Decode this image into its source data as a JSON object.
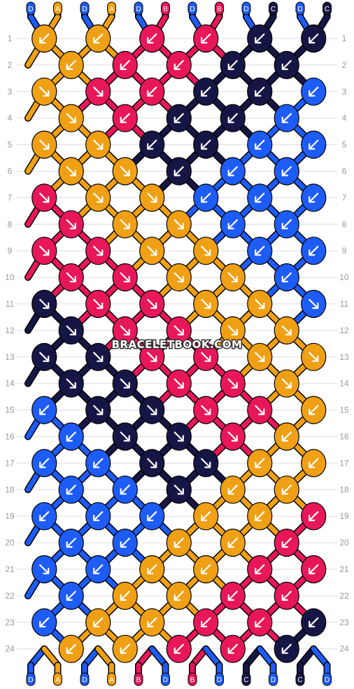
{
  "colors": {
    "A": "#f0a014",
    "B": "#e8175a",
    "C": "#161646",
    "D": "#1e5cf7"
  },
  "top_strands": [
    "D",
    "A",
    "D",
    "A",
    "D",
    "B",
    "D",
    "B",
    "D",
    "C",
    "D",
    "C"
  ],
  "bottom_strands": [
    "D",
    "A",
    "D",
    "A",
    "B",
    "D",
    "B",
    "D",
    "C",
    "D",
    "C",
    "D"
  ],
  "row_count": 24,
  "row_labels": [
    "1",
    "2",
    "3",
    "4",
    "5",
    "6",
    "7",
    "8",
    "9",
    "10",
    "11",
    "12",
    "13",
    "14",
    "15",
    "16",
    "17",
    "18",
    "19",
    "20",
    "21",
    "22",
    "23",
    "24"
  ],
  "watermark": "BRACELETBOOK.COM",
  "knot_colors": [
    [
      "A",
      "A",
      "B",
      "B",
      "C",
      "C"
    ],
    [
      "A",
      "B",
      "B",
      "C",
      "C"
    ],
    [
      "A",
      "B",
      "B",
      "C",
      "C",
      "D"
    ],
    [
      "A",
      "B",
      "C",
      "C",
      "D"
    ],
    [
      "A",
      "A",
      "C",
      "C",
      "D",
      "D"
    ],
    [
      "A",
      "A",
      "C",
      "D",
      "D"
    ],
    [
      "B",
      "A",
      "A",
      "D",
      "D",
      "D"
    ],
    [
      "B",
      "A",
      "A",
      "D",
      "D"
    ],
    [
      "B",
      "B",
      "A",
      "A",
      "D",
      "D"
    ],
    [
      "B",
      "B",
      "A",
      "A",
      "D"
    ],
    [
      "C",
      "B",
      "B",
      "A",
      "A",
      "D"
    ],
    [
      "C",
      "B",
      "B",
      "A",
      "A"
    ],
    [
      "C",
      "C",
      "B",
      "B",
      "A",
      "A"
    ],
    [
      "C",
      "C",
      "B",
      "B",
      "A"
    ],
    [
      "D",
      "C",
      "C",
      "B",
      "B",
      "A"
    ],
    [
      "D",
      "C",
      "C",
      "B",
      "A"
    ],
    [
      "D",
      "D",
      "C",
      "C",
      "A",
      "A"
    ],
    [
      "D",
      "D",
      "C",
      "A",
      "A"
    ],
    [
      "D",
      "D",
      "D",
      "A",
      "A",
      "B"
    ],
    [
      "D",
      "D",
      "A",
      "A",
      "B"
    ],
    [
      "D",
      "D",
      "A",
      "A",
      "B",
      "B"
    ],
    [
      "D",
      "A",
      "A",
      "B",
      "B"
    ],
    [
      "D",
      "A",
      "A",
      "B",
      "B",
      "C"
    ],
    [
      "A",
      "A",
      "B",
      "B",
      "C"
    ]
  ],
  "knot_arrows": [
    [
      "sw",
      "sw",
      "sw",
      "sw",
      "sw",
      "sw"
    ],
    [
      "sw",
      "sw",
      "sw",
      "sw",
      "sw"
    ],
    [
      "se",
      "se",
      "sw",
      "sw",
      "sw",
      "sw"
    ],
    [
      "se",
      "sw",
      "sw",
      "sw",
      "sw"
    ],
    [
      "se",
      "se",
      "sw",
      "sw",
      "sw",
      "sw"
    ],
    [
      "se",
      "se",
      "sw",
      "sw",
      "sw"
    ],
    [
      "se",
      "se",
      "se",
      "sw",
      "sw",
      "sw"
    ],
    [
      "se",
      "se",
      "se",
      "sw",
      "sw"
    ],
    [
      "se",
      "se",
      "se",
      "se",
      "sw",
      "sw"
    ],
    [
      "se",
      "se",
      "se",
      "se",
      "sw"
    ],
    [
      "se",
      "se",
      "se",
      "se",
      "se",
      "se"
    ],
    [
      "se",
      "se",
      "se",
      "se",
      "se"
    ],
    [
      "se",
      "se",
      "se",
      "se",
      "se",
      "se"
    ],
    [
      "se",
      "se",
      "se",
      "se",
      "se"
    ],
    [
      "sw",
      "se",
      "se",
      "se",
      "se",
      "sw"
    ],
    [
      "sw",
      "se",
      "se",
      "se",
      "sw"
    ],
    [
      "sw",
      "sw",
      "se",
      "se",
      "sw",
      "sw"
    ],
    [
      "sw",
      "sw",
      "se",
      "sw",
      "sw"
    ],
    [
      "sw",
      "sw",
      "sw",
      "sw",
      "sw",
      "sw"
    ],
    [
      "sw",
      "sw",
      "sw",
      "sw",
      "sw"
    ],
    [
      "se",
      "sw",
      "sw",
      "sw",
      "sw",
      "sw"
    ],
    [
      "sw",
      "sw",
      "sw",
      "sw",
      "sw"
    ],
    [
      "sw",
      "sw",
      "sw",
      "sw",
      "sw",
      "sw"
    ],
    [
      "sw",
      "sw",
      "sw",
      "sw",
      "sw"
    ]
  ]
}
